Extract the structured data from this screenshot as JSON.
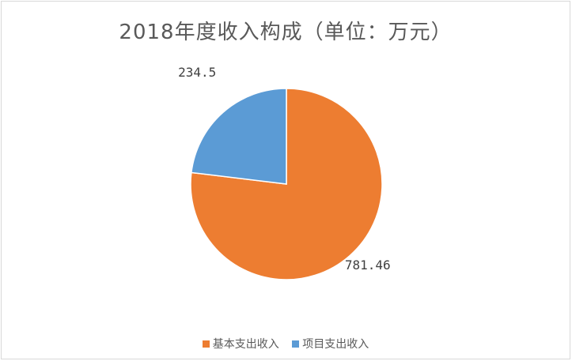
{
  "chart_data": {
    "type": "pie",
    "title": "2018年度收入构成（单位：万元）",
    "categories": [
      "基本支出收入",
      "项目支出收入"
    ],
    "values": [
      781.46,
      234.5
    ],
    "data_labels": [
      "781.46",
      "234.5"
    ],
    "colors": [
      "#ed7d31",
      "#5b9bd5"
    ],
    "legend_position": "bottom"
  }
}
